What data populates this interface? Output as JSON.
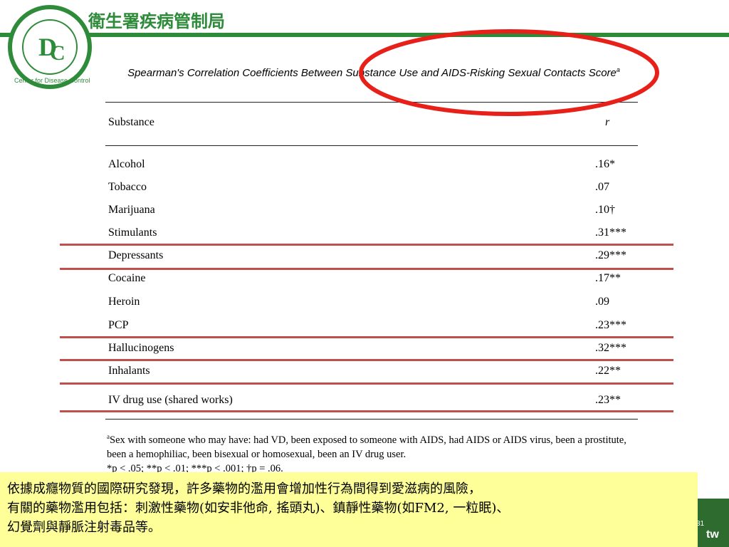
{
  "header": {
    "org_name": "衛生署疾病管制局",
    "logo_text": "Center for Disease Control"
  },
  "table": {
    "title": "Spearman's Correlation Coefficients Between Substance Use and AIDS-Risking Sexual Contacts Score",
    "title_note": "a",
    "columns": [
      "Substance",
      "r"
    ],
    "rows": [
      [
        "Alcohol",
        ".16*"
      ],
      [
        "Tobacco",
        ".07"
      ],
      [
        "Marijuana",
        ".10†"
      ],
      [
        "Stimulants",
        ".31***"
      ],
      [
        "Depressants",
        ".29***"
      ],
      [
        "Cocaine",
        ".17**"
      ],
      [
        "Heroin",
        ".09"
      ],
      [
        "PCP",
        ".23***"
      ],
      [
        "Hallucinogens",
        ".32***"
      ],
      [
        "Inhalants",
        ".22**"
      ],
      [
        "IV drug use (shared works)",
        ".23**"
      ]
    ],
    "footnote_marker": "a",
    "footnote": "Sex with someone who may have: had VD, been exposed to someone with AIDS, had AIDS or AIDS virus, been a prostitute, been a hemophiliac, been bisexual or homosexual, been an IV drug user.",
    "significance": "*p < .05; **p < .01; ***p < .001; †p = .06."
  },
  "summary": {
    "lines": [
      "依據成癮物質的國際研究發現，許多藥物的濫用會增加性行為間得到愛滋病的風險，",
      "有關的藥物濫用包括：刺激性藥物(如安非他命, 搖頭丸)、鎮靜性藥物(如FM2, 一粒眠)、",
      "幻覺劑與靜脈注射毒品等。"
    ]
  },
  "footer": {
    "page_number": "31",
    "domain": "tw"
  }
}
